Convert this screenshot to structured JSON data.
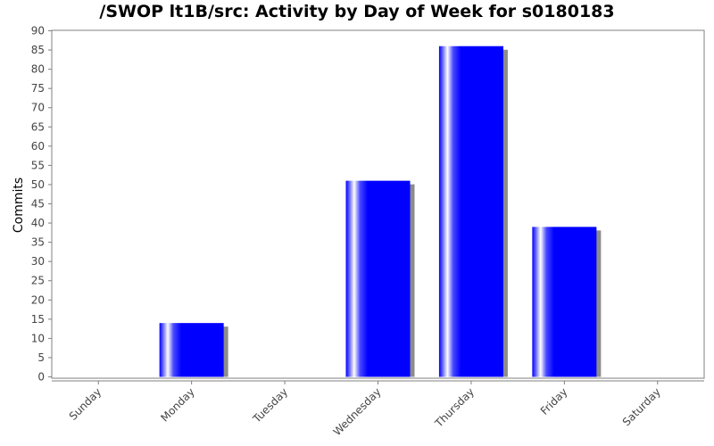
{
  "chart_data": {
    "type": "bar",
    "title": "/SWOP lt1B/src: Activity by Day of Week for s0180183",
    "xlabel": "",
    "ylabel": "Commits",
    "categories": [
      "Sunday",
      "Monday",
      "Tuesday",
      "Wednesday",
      "Thursday",
      "Friday",
      "Saturday"
    ],
    "values": [
      0,
      14,
      0,
      51,
      86,
      39,
      0
    ],
    "ylim": [
      0,
      90
    ],
    "yticks": [
      0,
      5,
      10,
      15,
      20,
      25,
      30,
      35,
      40,
      45,
      50,
      55,
      60,
      65,
      70,
      75,
      80,
      85,
      90
    ],
    "grid": false,
    "legend": "none",
    "colors": {
      "bar": "#0000ff",
      "bar_highlight": "#ffffff",
      "shadow": "#8c8c8c",
      "plot_border": "#808080"
    }
  }
}
